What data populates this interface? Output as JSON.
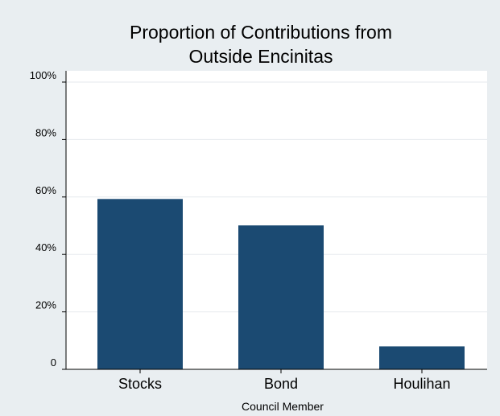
{
  "chart_data": {
    "type": "bar",
    "title": "Proportion of Contributions from Outside Encinitas",
    "title_lines": [
      "Proportion of Contributions from",
      "Outside Encinitas"
    ],
    "xlabel": "Council Member",
    "ylabel": "",
    "categories": [
      "Stocks",
      "Bond",
      "Houlihan"
    ],
    "values": [
      59.3,
      50.1,
      8.0
    ],
    "ylim": [
      0,
      100
    ],
    "yticks": [
      {
        "value": 0,
        "label": "0"
      },
      {
        "value": 20,
        "label": "20%"
      },
      {
        "value": 40,
        "label": "40%"
      },
      {
        "value": 60,
        "label": "60%"
      },
      {
        "value": 80,
        "label": "80%"
      },
      {
        "value": 100,
        "label": "100%"
      }
    ],
    "grid": true,
    "colors": {
      "bar": "#1b4a72",
      "plot_background": "#ffffff",
      "page_background": "#e9eef1",
      "grid": "#e6eaed",
      "axis": "#000000"
    }
  }
}
